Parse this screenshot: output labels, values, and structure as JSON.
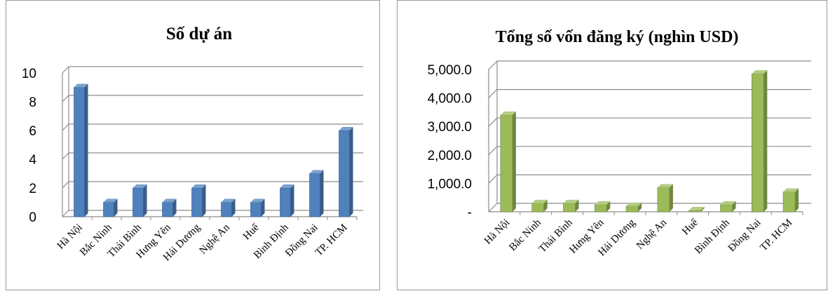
{
  "chart_data": [
    {
      "type": "bar",
      "title": "Số dự án",
      "categories": [
        "Hà Nội",
        "Bắc Ninh",
        "Thái Bình",
        "Hưng Yên",
        "Hải Dương",
        "Nghệ An",
        "Huế",
        "Bình Định",
        "Đồng Nai",
        "TP. HCM"
      ],
      "values": [
        9,
        1,
        2,
        1,
        2,
        1,
        1,
        2,
        3,
        6
      ],
      "ylim": [
        0,
        10
      ],
      "yticks": [
        "0",
        "2",
        "4",
        "6",
        "8",
        "10"
      ],
      "grid": true,
      "bar_color": "#4f81bd"
    },
    {
      "type": "bar",
      "title": "Tổng số vốn đăng ký (nghìn USD)",
      "categories": [
        "Hà Nội",
        "Bắc Ninh",
        "Thái Bình",
        "Hưng Yên",
        "Hải Dương",
        "Nghệ An",
        "Huế",
        "Bình Định",
        "Đồng Nai",
        "TP. HCM"
      ],
      "values": [
        3400,
        300,
        300,
        250,
        200,
        850,
        50,
        250,
        4850,
        700
      ],
      "ylim": [
        0,
        5000
      ],
      "yticks": [
        "-",
        "1,000.0",
        "2,000.0",
        "3,000.0",
        "4,000.0",
        "5,000.0"
      ],
      "grid": true,
      "bar_color": "#9bbb59"
    }
  ]
}
